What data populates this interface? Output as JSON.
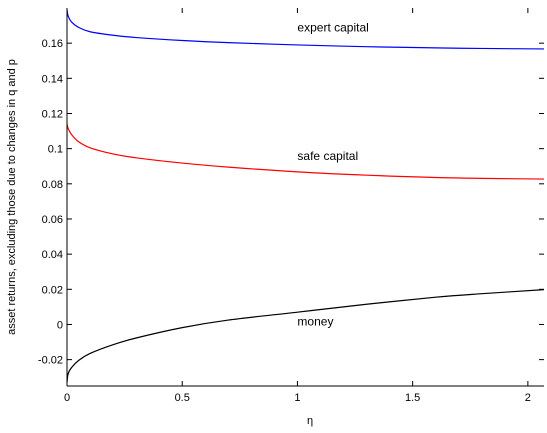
{
  "chart_data": {
    "type": "line",
    "xlabel": "η",
    "ylabel": "asset returns, excluding those due to changes in q and p",
    "xlim": [
      0,
      2.07
    ],
    "ylim": [
      -0.035,
      0.18
    ],
    "xticks": [
      0,
      0.5,
      1,
      1.5,
      2
    ],
    "xtick_labels": [
      "0",
      "0.5",
      "1",
      "1.5",
      "2"
    ],
    "yticks": [
      -0.02,
      0,
      0.02,
      0.04,
      0.06,
      0.08,
      0.1,
      0.12,
      0.14,
      0.16
    ],
    "ytick_labels": [
      "-0.02",
      "0",
      "0.02",
      "0.04",
      "0.06",
      "0.08",
      "0.1",
      "0.12",
      "0.14",
      "0.16"
    ],
    "grid": false,
    "colors": {
      "expert": "#0000ff",
      "safe": "#ff0000",
      "money": "#000000"
    },
    "x": [
      0,
      0.005,
      0.02,
      0.05,
      0.1,
      0.2,
      0.3,
      0.5,
      0.7,
      1.0,
      1.3,
      1.6,
      1.8,
      2.07
    ],
    "series": [
      {
        "key": "expert",
        "values": [
          0.179,
          0.1755,
          0.172,
          0.169,
          0.1665,
          0.1645,
          0.1632,
          0.1615,
          0.1603,
          0.159,
          0.158,
          0.1573,
          0.157,
          0.1567
        ]
      },
      {
        "key": "safe",
        "values": [
          0.114,
          0.1115,
          0.108,
          0.104,
          0.1005,
          0.097,
          0.0948,
          0.0918,
          0.0895,
          0.0868,
          0.0849,
          0.0836,
          0.0831,
          0.0827
        ]
      },
      {
        "key": "money",
        "values": [
          -0.033,
          -0.028,
          -0.0245,
          -0.0205,
          -0.0165,
          -0.0115,
          -0.0077,
          -0.0018,
          0.0025,
          0.007,
          0.0115,
          0.0155,
          0.0175,
          0.0198
        ]
      }
    ],
    "annotations": [
      {
        "text": "expert capital",
        "x": 1.0,
        "y": 0.1665
      },
      {
        "text": "safe capital",
        "x": 1.0,
        "y": 0.0935
      },
      {
        "text": "money",
        "x": 1.0,
        "y": -0.0005
      }
    ]
  }
}
